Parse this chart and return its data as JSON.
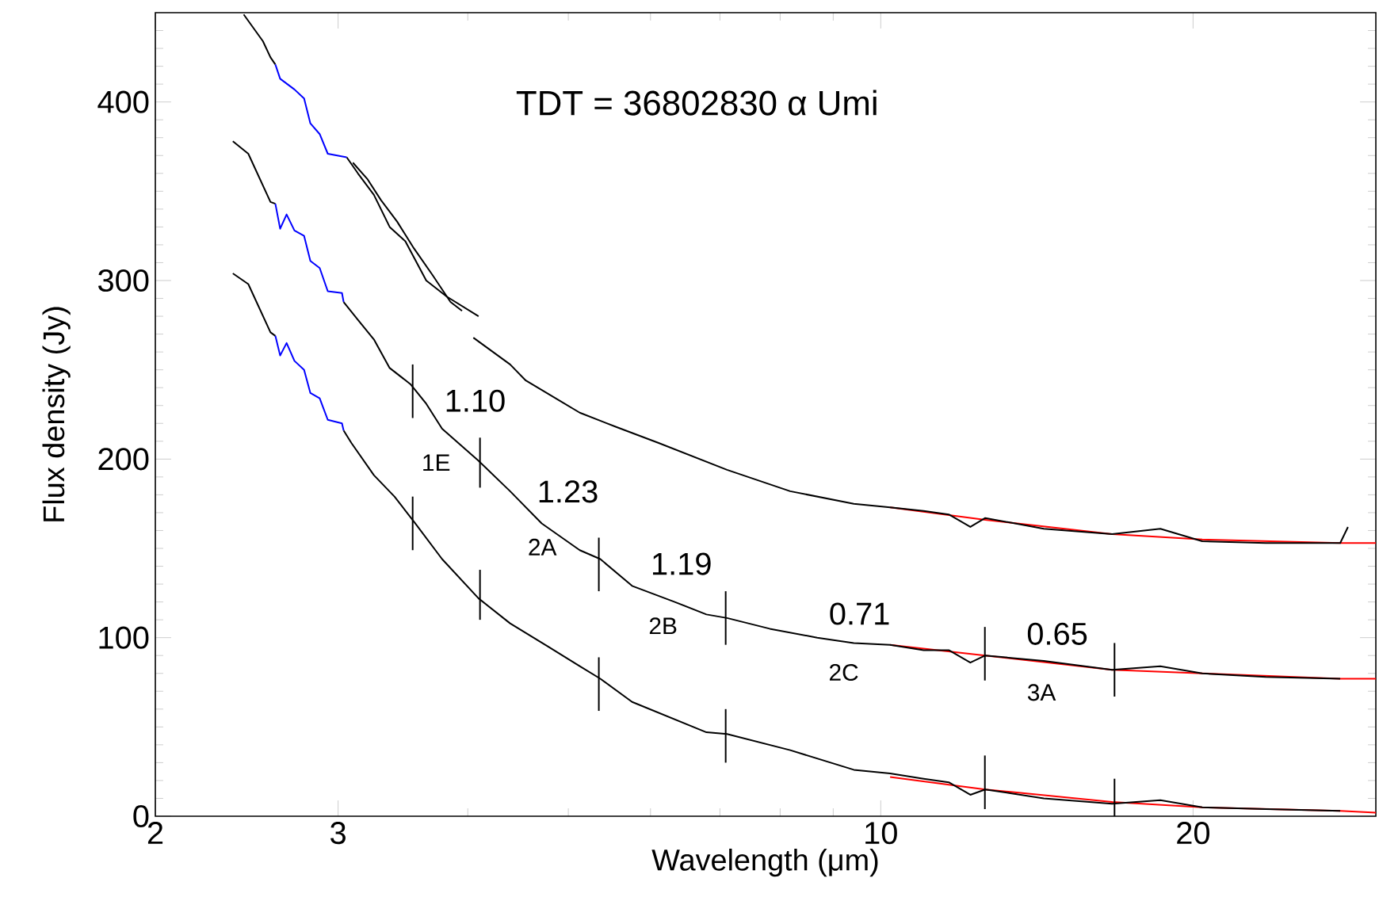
{
  "chart_data": {
    "type": "line",
    "xlabel": "Wavelength (μm)",
    "ylabel": "Flux density (Jy)",
    "log": "x",
    "grid": false,
    "xlim": [
      2,
      30
    ],
    "ylim": [
      0,
      450
    ],
    "xticks": [
      2,
      3,
      {
        "value": 4,
        "label": null
      },
      {
        "value": 5,
        "label": null
      },
      {
        "value": 6,
        "label": null
      },
      {
        "value": 7,
        "label": null
      },
      {
        "value": 8,
        "label": null
      },
      {
        "value": 9,
        "label": null
      },
      10,
      20
    ],
    "yticks": [
      0,
      {
        "value": 10,
        "label": null
      },
      {
        "value": 20,
        "label": null
      },
      {
        "value": 30,
        "label": null
      },
      {
        "value": 40,
        "label": null
      },
      {
        "value": 50,
        "label": null
      },
      {
        "value": 60,
        "label": null
      },
      {
        "value": 70,
        "label": null
      },
      {
        "value": 80,
        "label": null
      },
      {
        "value": 90,
        "label": null
      },
      100,
      {
        "value": 110,
        "label": null
      },
      {
        "value": 120,
        "label": null
      },
      {
        "value": 130,
        "label": null
      },
      {
        "value": 140,
        "label": null
      },
      {
        "value": 150,
        "label": null
      },
      {
        "value": 160,
        "label": null
      },
      {
        "value": 170,
        "label": null
      },
      {
        "value": 180,
        "label": null
      },
      {
        "value": 190,
        "label": null
      },
      200,
      {
        "value": 210,
        "label": null
      },
      {
        "value": 220,
        "label": null
      },
      {
        "value": 230,
        "label": null
      },
      {
        "value": 240,
        "label": null
      },
      {
        "value": 250,
        "label": null
      },
      {
        "value": 260,
        "label": null
      },
      {
        "value": 270,
        "label": null
      },
      {
        "value": 280,
        "label": null
      },
      {
        "value": 290,
        "label": null
      },
      300,
      {
        "value": 310,
        "label": null
      },
      {
        "value": 320,
        "label": null
      },
      {
        "value": 330,
        "label": null
      },
      {
        "value": 340,
        "label": null
      },
      {
        "value": 350,
        "label": null
      },
      {
        "value": 360,
        "label": null
      },
      {
        "value": 370,
        "label": null
      },
      {
        "value": 380,
        "label": null
      },
      {
        "value": 390,
        "label": null
      },
      400,
      {
        "value": 410,
        "label": null
      },
      {
        "value": 420,
        "label": null
      },
      {
        "value": 430,
        "label": null
      },
      {
        "value": 440,
        "label": null
      }
    ],
    "series": [
      {
        "color": "#ff0000",
        "x": [
          10.21,
          12.61,
          16.71,
          20.41,
          27.72,
          30
        ],
        "values": [
          173,
          166,
          158,
          155,
          153,
          153
        ]
      },
      {
        "color": "#ff0000",
        "x": [
          10.21,
          12.61,
          16.71,
          20.41,
          27.72,
          30
        ],
        "values": [
          96,
          90,
          82,
          80,
          77,
          77
        ]
      },
      {
        "color": "#ff0000",
        "x": [
          10.21,
          12.61,
          16.71,
          20.41,
          27.72,
          30
        ],
        "values": [
          22,
          15,
          8,
          5,
          3,
          2
        ]
      },
      {
        "color": "#000000",
        "x": [
          2.433,
          2.539,
          2.582,
          2.61
        ],
        "values": [
          449,
          434,
          425,
          421
        ]
      },
      {
        "color": "#000000",
        "x": [
          3.058,
          3.135,
          3.248,
          3.364,
          3.483,
          3.648,
          3.818,
          4.097
        ],
        "values": [
          369,
          360,
          348,
          330,
          322,
          300,
          291,
          280
        ]
      },
      {
        "color": "#000000",
        "x": [
          3.1,
          3.2,
          3.3,
          3.42,
          3.55,
          3.7,
          3.85,
          3.95
        ],
        "values": [
          366,
          357,
          345,
          333,
          318,
          303,
          288,
          283
        ]
      },
      {
        "color": "#000000",
        "x": [
          4.05,
          4.394,
          4.55,
          5.128,
          5.56,
          6.11,
          7.111,
          8.18,
          9.42,
          10.21,
          11.0,
          11.63,
          12.2,
          12.61,
          14.36,
          16.71,
          18.6,
          20.41,
          23.5,
          27.72,
          28.2
        ],
        "values": [
          268,
          253,
          244,
          226,
          218,
          209,
          194,
          182,
          175,
          173,
          171,
          169,
          162,
          167,
          161,
          158,
          161,
          154,
          153,
          153,
          162
        ]
      },
      {
        "color": "#000000",
        "x": [
          2.375,
          2.458,
          2.582,
          2.61
        ],
        "values": [
          378,
          371,
          344,
          343
        ]
      },
      {
        "color": "#000000",
        "x": [
          3.037,
          3.135,
          3.248,
          3.364,
          3.522,
          3.648,
          3.779,
          4.097,
          4.394,
          4.713,
          5.128,
          5.368,
          5.76,
          6.332,
          6.793,
          7.111,
          7.818,
          8.687,
          9.42,
          10.21,
          11.0,
          11.63,
          12.2,
          12.61,
          14.36,
          16.71,
          18.6,
          20.41,
          23.5,
          27.72
        ],
        "values": [
          288,
          278,
          267,
          251,
          242,
          231,
          217,
          199,
          182,
          164,
          149,
          144,
          129,
          120,
          113,
          111,
          105,
          100,
          97,
          96,
          93,
          93,
          86,
          90,
          87,
          82,
          84,
          80,
          78,
          77
        ]
      },
      {
        "color": "#000000",
        "x": [
          2.375,
          2.458,
          2.582,
          2.61
        ],
        "values": [
          304,
          298,
          271,
          269
        ]
      },
      {
        "color": "#000000",
        "x": [
          3.037,
          3.09,
          3.248,
          3.4,
          3.56,
          3.779,
          4.097,
          4.394,
          4.78,
          5.128,
          5.368,
          5.76,
          6.793,
          7.111,
          8.18,
          9.42,
          10.21,
          11.0,
          11.63,
          12.2,
          12.61,
          14.36,
          16.71,
          18.6,
          20.41,
          23.5,
          27.72
        ],
        "values": [
          216,
          209,
          191,
          179,
          164,
          144,
          122,
          108,
          95,
          84,
          77,
          64,
          47,
          46,
          37,
          26,
          24,
          21,
          19,
          12,
          15,
          10,
          7,
          9,
          5,
          4,
          3
        ]
      },
      {
        "color": "#0000ff",
        "x": [
          2.61,
          2.638,
          2.723,
          2.782,
          2.821,
          2.88,
          2.932,
          3.058
        ],
        "values": [
          421,
          413,
          407,
          402,
          388,
          382,
          371,
          369
        ]
      },
      {
        "color": "#0000ff",
        "x": [
          2.61,
          2.638,
          2.676,
          2.723,
          2.782,
          2.821,
          2.88,
          2.932,
          3.026,
          3.037
        ],
        "values": [
          343,
          329,
          337,
          328,
          325,
          311,
          307,
          294,
          293,
          288
        ]
      },
      {
        "color": "#0000ff",
        "x": [
          2.61,
          2.638,
          2.676,
          2.723,
          2.782,
          2.821,
          2.88,
          2.932,
          3.026,
          3.037
        ],
        "values": [
          269,
          258,
          265,
          255,
          250,
          237,
          234,
          222,
          220,
          216
        ]
      },
      {
        "color": "#000000",
        "x": [
          3.54,
          3.54
        ],
        "values": [
          223,
          253
        ]
      },
      {
        "color": "#000000",
        "x": [
          4.11,
          4.11
        ],
        "values": [
          184,
          212
        ]
      },
      {
        "color": "#000000",
        "x": [
          5.35,
          5.35
        ],
        "values": [
          126,
          156
        ]
      },
      {
        "color": "#000000",
        "x": [
          7.09,
          7.09
        ],
        "values": [
          96,
          126
        ]
      },
      {
        "color": "#000000",
        "x": [
          12.6,
          12.6
        ],
        "values": [
          76,
          106
        ]
      },
      {
        "color": "#000000",
        "x": [
          16.8,
          16.8
        ],
        "values": [
          67,
          97
        ]
      },
      {
        "color": "#000000",
        "x": [
          3.54,
          3.54
        ],
        "values": [
          149,
          179
        ]
      },
      {
        "color": "#000000",
        "x": [
          4.11,
          4.11
        ],
        "values": [
          110,
          138
        ]
      },
      {
        "color": "#000000",
        "x": [
          5.35,
          5.35
        ],
        "values": [
          59,
          89
        ]
      },
      {
        "color": "#000000",
        "x": [
          7.09,
          7.09
        ],
        "values": [
          30,
          60
        ]
      },
      {
        "color": "#000000",
        "x": [
          12.6,
          12.6
        ],
        "values": [
          4,
          34
        ]
      },
      {
        "color": "#000000",
        "x": [
          16.8,
          16.8
        ],
        "values": [
          0,
          21
        ]
      }
    ],
    "annotations": [
      "TDT = 36802830 α Umi",
      "1.10",
      "1E",
      "1.23",
      "2A",
      "1.19",
      "2B",
      "0.71",
      "2C",
      "0.65",
      "3A"
    ]
  }
}
